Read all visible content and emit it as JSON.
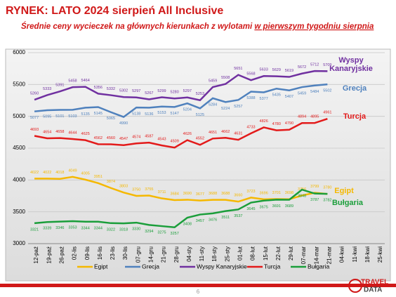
{
  "title": "RYNEK: LATO 2024 sierpień All Inclusive",
  "subtitle": "Średnie ceny wycieczek na głównych kierunkach z wylotami",
  "subtitle_underlined": "w pierwszym tygodniu sierpnia",
  "page_number": "6",
  "logo": [
    "TRAVEL",
    "DATA"
  ],
  "chart_data": {
    "type": "line",
    "categories": [
      "12-paź",
      "19-paź",
      "26-paź",
      "02-lis",
      "09-lis",
      "16-lis",
      "23-lis",
      "30-lis",
      "07-gru",
      "14-gru",
      "21-gru",
      "28-gru",
      "04-sty",
      "11-sty",
      "18-sty",
      "25-sty",
      "01-lut",
      "08-lut",
      "15-lut",
      "22-lut",
      "29-lut",
      "07-mar",
      "14-mar",
      "21-mar",
      "04-kwi",
      "11-kwi",
      "18-kwi",
      "25-kwi"
    ],
    "series": [
      {
        "name": "Egipt",
        "color": "#f5b800",
        "values": [
          4022,
          4022,
          4018,
          4049,
          4005,
          3951,
          3874,
          3803,
          3750,
          3755,
          3711,
          3684,
          3690,
          3677,
          3688,
          3688,
          3660,
          3723,
          3696,
          3701,
          3698,
          3756,
          3799,
          3780,
          null,
          null,
          null,
          null
        ]
      },
      {
        "name": "Grecja",
        "color": "#4f81bd",
        "values": [
          5077,
          5095,
          5101,
          5103,
          5135,
          5145,
          5065,
          4990,
          5138,
          5136,
          5153,
          5147,
          5204,
          5125,
          5284,
          5224,
          5257,
          5388,
          5377,
          5435,
          5407,
          5459,
          5484,
          5502,
          null,
          null,
          null,
          null
        ]
      },
      {
        "name": "Wyspy Kanaryjskie",
        "color": "#7030a0",
        "values": [
          5260,
          5333,
          5391,
          5458,
          5464,
          5356,
          5332,
          5302,
          5297,
          5267,
          5299,
          5280,
          5297,
          5253,
          5459,
          5508,
          5651,
          5568,
          5633,
          5629,
          5619,
          5672,
          5712,
          5709,
          null,
          null,
          null,
          null
        ]
      },
      {
        "name": "Turcja",
        "color": "#e31a1a",
        "values": [
          4693,
          4654,
          4658,
          4644,
          4625,
          4562,
          4560,
          4547,
          4574,
          4587,
          4543,
          4509,
          4626,
          4552,
          4651,
          4662,
          4631,
          4733,
          4826,
          4780,
          4790,
          4894,
          4895,
          4961,
          null,
          null,
          null,
          null
        ]
      },
      {
        "name": "Bułgaria",
        "color": "#1a9e3a",
        "values": [
          3321,
          3339,
          3346,
          3353,
          3344,
          3344,
          3322,
          3318,
          3330,
          3294,
          3275,
          3257,
          3408,
          3457,
          3476,
          3511,
          3537,
          3645,
          3675,
          3691,
          3689,
          3848,
          3787,
          3782,
          null,
          null,
          null,
          null
        ]
      }
    ],
    "ylim": [
      3000,
      6000
    ],
    "yticks": [
      3000,
      3500,
      4000,
      4500,
      5000,
      5500,
      6000
    ],
    "grid": true,
    "legend": "bottom"
  }
}
